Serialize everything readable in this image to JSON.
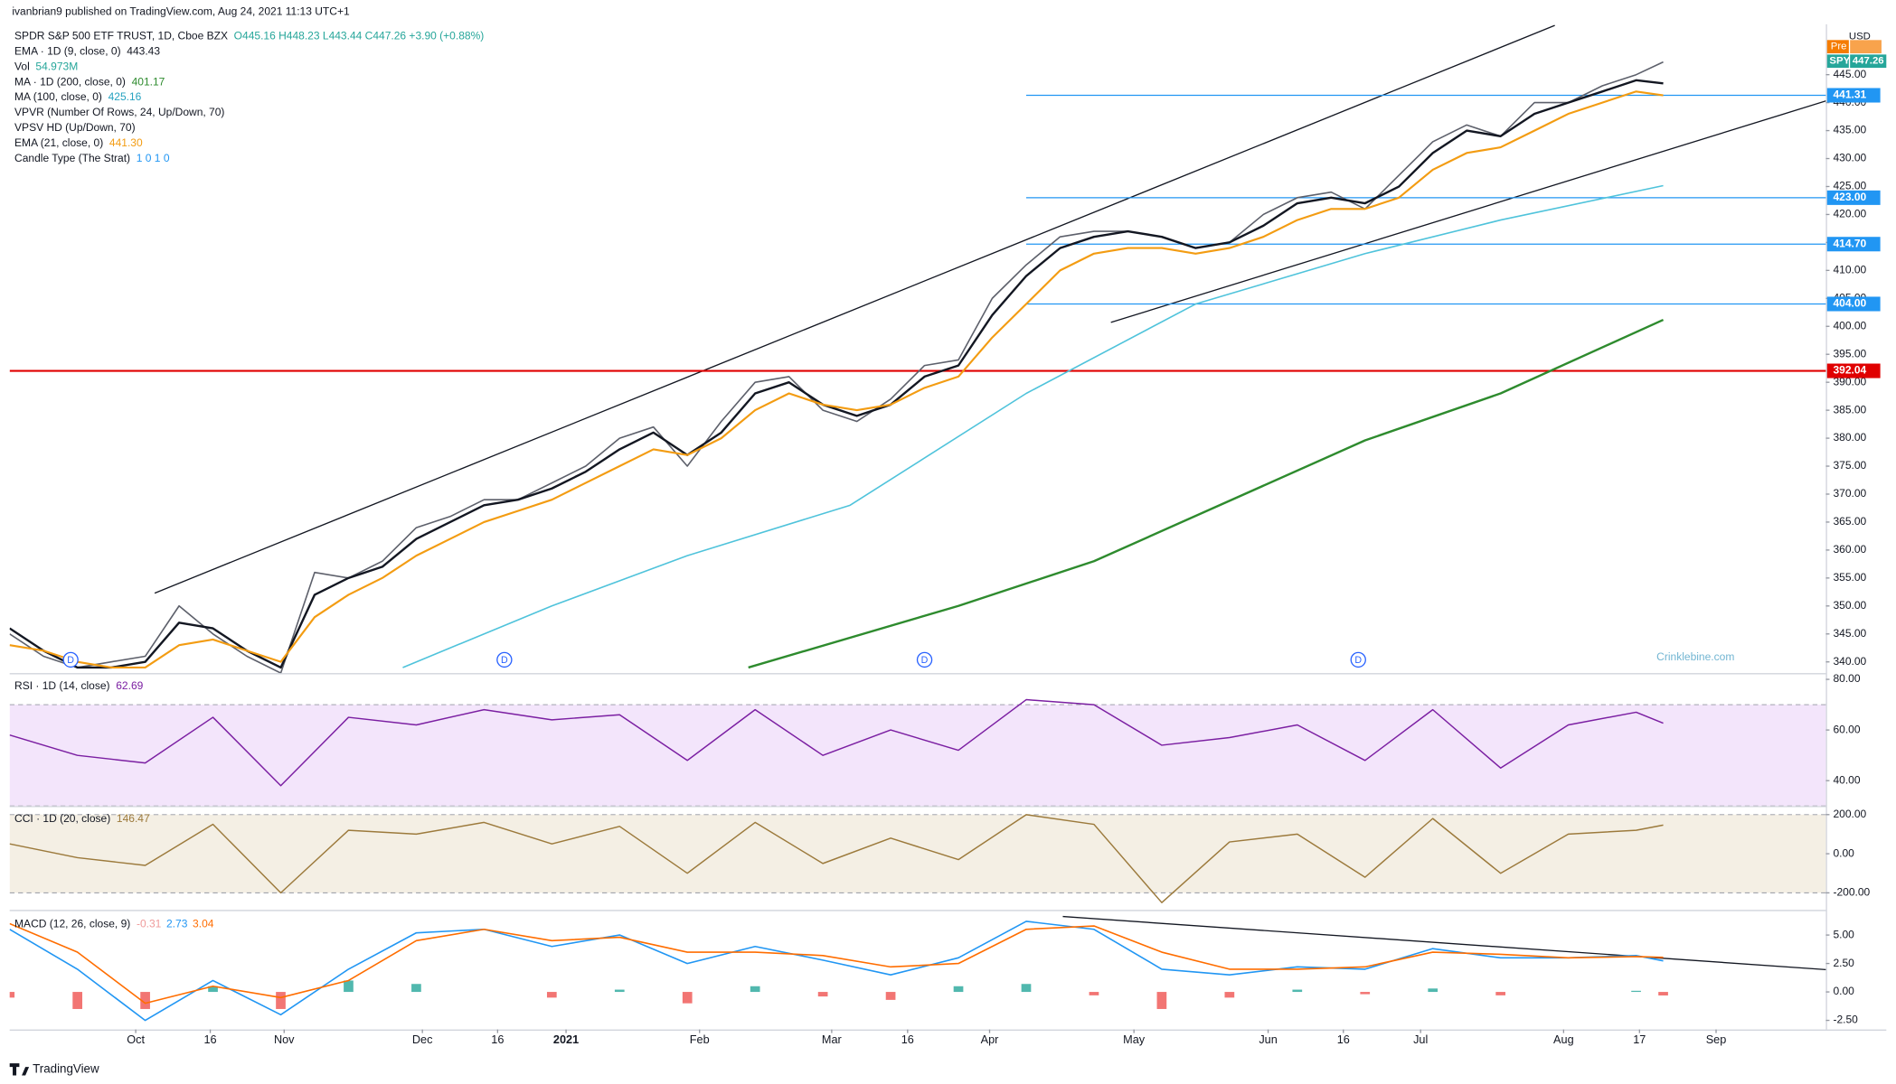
{
  "published": "ivanbrian9 published on TradingView.com, Aug 24, 2021 11:13 UTC+1",
  "brand": "TradingView",
  "watermark": "Crinklebine.com",
  "currency": "USD",
  "badges": [
    {
      "label": "Pre",
      "color": "#f57c00"
    },
    {
      "label": "SPY",
      "color": "#26a69a"
    },
    {
      "label": "447.26",
      "color": "#26a69a"
    }
  ],
  "chart_data": [
    {
      "type": "line",
      "xlim": [
        0,
        268
      ],
      "ylim": [
        338,
        454
      ],
      "yticks": [
        {
          "value": 445,
          "label": "445.00"
        },
        {
          "value": 440,
          "label": "440.00"
        },
        {
          "value": 435,
          "label": "435.00"
        },
        {
          "value": 430,
          "label": "430.00"
        },
        {
          "value": 425,
          "label": "425.00"
        },
        {
          "value": 420,
          "label": "420.00"
        },
        {
          "value": 415,
          "label": "415.00"
        },
        {
          "value": 410,
          "label": "410.00"
        },
        {
          "value": 405,
          "label": "405.00"
        },
        {
          "value": 400,
          "label": "400.00"
        },
        {
          "value": 395,
          "label": "395.00"
        },
        {
          "value": 390,
          "label": "390.00"
        },
        {
          "value": 385,
          "label": "385.00"
        },
        {
          "value": 380,
          "label": "380.00"
        },
        {
          "value": 375,
          "label": "375.00"
        },
        {
          "value": 370,
          "label": "370.00"
        },
        {
          "value": 365,
          "label": "365.00"
        },
        {
          "value": 360,
          "label": "360.00"
        },
        {
          "value": 355,
          "label": "355.00"
        },
        {
          "value": 350,
          "label": "350.00"
        },
        {
          "value": 345,
          "label": "345.00"
        },
        {
          "value": 340,
          "label": "340.00"
        }
      ],
      "xticks": [
        {
          "value": 18.6,
          "label": "Oct"
        },
        {
          "value": 29.6,
          "label": "16"
        },
        {
          "value": 40.5,
          "label": "Nov"
        },
        {
          "value": 60.9,
          "label": "Dec"
        },
        {
          "value": 72,
          "label": "16"
        },
        {
          "value": 82.1,
          "label": "2021"
        },
        {
          "value": 101.8,
          "label": "Feb"
        },
        {
          "value": 121.3,
          "label": "Mar"
        },
        {
          "value": 132.5,
          "label": "16"
        },
        {
          "value": 144.6,
          "label": "Apr"
        },
        {
          "value": 165.9,
          "label": "May"
        },
        {
          "value": 185.7,
          "label": "Jun"
        },
        {
          "value": 196.8,
          "label": "16"
        },
        {
          "value": 208.2,
          "label": "Jul"
        },
        {
          "value": 229.3,
          "label": "Aug"
        },
        {
          "value": 240.5,
          "label": "17"
        },
        {
          "value": 251.8,
          "label": "Sep"
        }
      ],
      "x": [
        0,
        5,
        10,
        15,
        20,
        25,
        30,
        35,
        40,
        45,
        50,
        55,
        60,
        65,
        70,
        75,
        80,
        85,
        90,
        95,
        100,
        105,
        110,
        115,
        120,
        125,
        130,
        135,
        140,
        145,
        150,
        155,
        160,
        165,
        170,
        175,
        180,
        185,
        190,
        195,
        200,
        205,
        210,
        215,
        220,
        225,
        230,
        235,
        240,
        244
      ],
      "series": [
        {
          "name": "SPY",
          "color": "#5d606b",
          "width": 1.2,
          "values": [
            345,
            341,
            339,
            340,
            341,
            350,
            345,
            341,
            338,
            356,
            355,
            358,
            364,
            366,
            369,
            369,
            372,
            375,
            380,
            382,
            375,
            383,
            390,
            391,
            385,
            383,
            387,
            393,
            394,
            405,
            411,
            416,
            417,
            417,
            416,
            414,
            415,
            420,
            423,
            424,
            421,
            427,
            433,
            436,
            434,
            440,
            440,
            443,
            445,
            447.26
          ]
        },
        {
          "name": "EMA 9",
          "color": "#131722",
          "width": 1.8,
          "values": [
            346,
            342,
            339,
            339,
            340,
            347,
            346,
            342,
            339,
            352,
            355,
            357,
            362,
            365,
            368,
            369,
            371,
            374,
            378,
            381,
            377,
            381,
            388,
            390,
            386,
            384,
            386,
            391,
            393,
            402,
            409,
            414,
            416,
            417,
            416,
            414,
            415,
            418,
            422,
            423,
            422,
            425,
            431,
            435,
            434,
            438,
            440,
            442,
            444,
            443.43
          ]
        },
        {
          "name": "EMA 21",
          "color": "#f39c12",
          "width": 1.6,
          "values": [
            343,
            342,
            340,
            339,
            339,
            343,
            344,
            342,
            340,
            348,
            352,
            355,
            359,
            362,
            365,
            367,
            369,
            372,
            375,
            378,
            377,
            380,
            385,
            388,
            386,
            385,
            386,
            389,
            391,
            398,
            404,
            410,
            413,
            414,
            414,
            413,
            414,
            416,
            419,
            421,
            421,
            423,
            428,
            431,
            432,
            435,
            438,
            440,
            442,
            441.3
          ]
        },
        {
          "name": "MA 100",
          "color": "#4fc3db",
          "width": 1.2,
          "x": [
            58,
            80,
            100,
            124,
            150,
            175,
            200,
            220,
            244
          ],
          "values": [
            339,
            350,
            359,
            368,
            388,
            404,
            413,
            419,
            425.16
          ]
        },
        {
          "name": "MA 200",
          "color": "#2e8b2e",
          "width": 1.8,
          "x": [
            109,
            140,
            160,
            200,
            220,
            244
          ],
          "values": [
            339,
            350,
            358,
            379.6,
            388,
            401.17
          ]
        }
      ],
      "trendlines": [
        {
          "x": [
            21.4,
            228
          ],
          "y": [
            352.3,
            453.8
          ],
          "color": "#131722"
        },
        {
          "x": [
            162.5,
            268
          ],
          "y": [
            400.7,
            440.3
          ],
          "color": "#131722"
        }
      ],
      "levels": [
        {
          "value": 441.31,
          "label": "441.31",
          "color": "#2196f3"
        },
        {
          "value": 423.0,
          "label": "423.00",
          "color": "#2196f3"
        },
        {
          "value": 414.7,
          "label": "414.70",
          "color": "#2196f3"
        },
        {
          "value": 404.0,
          "label": "404.00",
          "color": "#2196f3"
        },
        {
          "value": 392.04,
          "label": "392.04",
          "color": "#e00000"
        }
      ],
      "dividends": {
        "label": "D",
        "x": [
          9,
          73,
          135,
          199
        ]
      },
      "legend": [
        {
          "label": "SPDR S&P 500 ETF TRUST, 1D, Cboe BZX",
          "value": "O445.16 H448.23 L443.44 C447.26 +3.90 (+0.88%)",
          "color": "#26a69a"
        },
        {
          "label": "EMA · 1D (9, close, 0)",
          "value": "443.43",
          "color": "#131722"
        },
        {
          "label": "Vol",
          "value": "54.973M",
          "color": "#26a69a"
        },
        {
          "label": "MA · 1D (200, close, 0)",
          "value": "401.17",
          "color": "#2e8b2e"
        },
        {
          "label": "MA (100, close, 0)",
          "value": "425.16",
          "color": "#26a2c0"
        },
        {
          "label": "VPVR (Number Of Rows, 24, Up/Down, 70)"
        },
        {
          "label": "VPSV HD (Up/Down, 70)"
        },
        {
          "label": "EMA (21, close, 0)",
          "value": "441.30",
          "color": "#f39c12"
        },
        {
          "label": "Candle Type (The Strat)",
          "value": "1 0 1 0",
          "color": "#2196f3"
        }
      ]
    },
    {
      "type": "line",
      "xlim": [
        0,
        268
      ],
      "ylim": [
        30,
        82
      ],
      "band": [
        30,
        70
      ],
      "band_color": "#f3e5fb",
      "yticks": [
        {
          "value": 80,
          "label": "80.00"
        },
        {
          "value": 60,
          "label": "60.00"
        },
        {
          "value": 40,
          "label": "40.00"
        }
      ],
      "x": [
        0,
        10,
        20,
        30,
        40,
        50,
        60,
        70,
        80,
        90,
        100,
        110,
        120,
        130,
        140,
        150,
        160,
        170,
        180,
        190,
        200,
        210,
        220,
        230,
        240,
        244
      ],
      "series": [
        {
          "name": "RSI",
          "color": "#7b1fa2",
          "width": 1.1,
          "values": [
            58,
            50,
            47,
            65,
            38,
            65,
            62,
            68,
            64,
            66,
            48,
            68,
            50,
            60,
            52,
            72,
            70,
            54,
            57,
            62,
            48,
            68,
            45,
            62,
            67,
            62.69
          ]
        }
      ],
      "legend": [
        {
          "label": "RSI · 1D (14, close)",
          "value": "62.69",
          "color": "#7b1fa2"
        }
      ]
    },
    {
      "type": "line",
      "xlim": [
        0,
        268
      ],
      "ylim": [
        -287,
        238
      ],
      "band": [
        -200,
        200
      ],
      "band_color": "#f4efe4",
      "yticks": [
        {
          "value": 200,
          "label": "200.00"
        },
        {
          "value": 0,
          "label": "0.00"
        },
        {
          "value": -200,
          "label": "-200.00"
        }
      ],
      "x": [
        0,
        10,
        20,
        30,
        40,
        50,
        60,
        70,
        80,
        90,
        100,
        110,
        120,
        130,
        140,
        150,
        160,
        170,
        180,
        190,
        200,
        210,
        220,
        230,
        240,
        244
      ],
      "series": [
        {
          "name": "CCI",
          "color": "#9c7a3c",
          "width": 1.1,
          "values": [
            50,
            -20,
            -60,
            150,
            -200,
            120,
            100,
            160,
            50,
            140,
            -100,
            160,
            -50,
            80,
            -30,
            200,
            150,
            -250,
            60,
            100,
            -120,
            180,
            -100,
            100,
            120,
            146.47
          ]
        }
      ],
      "legend": [
        {
          "label": "CCI · 1D (20, close)",
          "value": "146.47",
          "color": "#9c7a3c"
        }
      ]
    },
    {
      "type": "line",
      "xlim": [
        0,
        268
      ],
      "ylim": [
        -3.3,
        7
      ],
      "yticks": [
        {
          "value": 5,
          "label": "5.00"
        },
        {
          "value": 2.5,
          "label": "2.50"
        },
        {
          "value": 0,
          "label": "0.00"
        },
        {
          "value": -2.5,
          "label": "-2.50"
        }
      ],
      "x": [
        0,
        10,
        20,
        30,
        40,
        50,
        60,
        70,
        80,
        90,
        100,
        110,
        120,
        130,
        140,
        150,
        160,
        170,
        180,
        190,
        200,
        210,
        220,
        230,
        240,
        244
      ],
      "series": [
        {
          "name": "Histogram",
          "kind": "bar",
          "color": "#26a69a",
          "negative_color": "#ef5350",
          "values": [
            -0.5,
            -1.5,
            -1.5,
            0.5,
            -1.5,
            1,
            0.7,
            0,
            -0.5,
            0.2,
            -1,
            0.5,
            -0.4,
            -0.7,
            0.5,
            0.7,
            -0.3,
            -1.5,
            -0.5,
            0.2,
            -0.2,
            0.3,
            -0.3,
            0,
            0.1,
            -0.31
          ]
        },
        {
          "name": "MACD",
          "color": "#2196f3",
          "width": 1.2,
          "values": [
            5.5,
            2,
            -2.5,
            1,
            -2,
            2,
            5.2,
            5.5,
            4,
            5,
            2.5,
            4,
            2.8,
            1.5,
            3,
            6.2,
            5.5,
            2,
            1.5,
            2.2,
            2,
            3.8,
            3,
            3,
            3.2,
            2.73
          ]
        },
        {
          "name": "Signal",
          "color": "#ff6d00",
          "width": 1.2,
          "values": [
            6,
            3.5,
            -1,
            0.5,
            -0.5,
            1,
            4.5,
            5.5,
            4.5,
            4.8,
            3.5,
            3.5,
            3.2,
            2.2,
            2.5,
            5.5,
            5.8,
            3.5,
            2,
            2,
            2.2,
            3.5,
            3.3,
            3,
            3.1,
            3.04
          ]
        }
      ],
      "trendlines": [
        {
          "x": [
            155.4,
            268
          ],
          "y": [
            6.63,
            1.96
          ],
          "color": "#131722"
        }
      ],
      "legend": [
        {
          "label": "MACD (12, 26, close, 9)",
          "value": "-0.31",
          "color": "#ef9a9a"
        },
        {
          "value": "2.73",
          "color": "#2196f3"
        },
        {
          "value": "3.04",
          "color": "#ff6d00"
        }
      ]
    }
  ]
}
